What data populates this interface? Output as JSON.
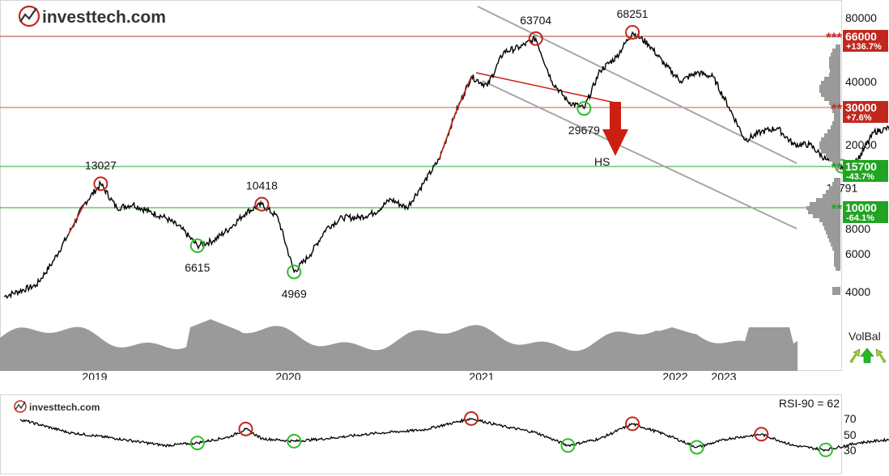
{
  "brand": {
    "name": "investtech.com",
    "small_name": "investtech.com"
  },
  "colors": {
    "price_line": "#000000",
    "resistance_line": "#b03a2e",
    "support_line": "#22aa22",
    "trend_channel": "#a6a6a6",
    "volume_fill": "#9a9a9a",
    "resistance_label_bg": "#c0281e",
    "support_label_bg": "#22a322",
    "circle_high": "#c0281e",
    "circle_low": "#2fbf2f",
    "hs_arrow": "#cc1f10"
  },
  "chart_data": [
    {
      "type": "line",
      "title": "",
      "ylim": [
        3500,
        95000
      ],
      "scale": "log",
      "x_ticks": [
        "2019",
        "2020",
        "2021",
        "2022",
        "2023"
      ],
      "y_ticks": [
        "80000",
        "40000",
        "20000",
        "8000",
        "6000",
        "4000"
      ],
      "series": [
        {
          "values": [
            [
              "2018-08",
              3800
            ],
            [
              "2018-10",
              4300
            ],
            [
              "2018-11",
              5500
            ],
            [
              "2018-12",
              7500
            ],
            [
              "2019-01",
              10500
            ],
            [
              "2019-02",
              13027
            ],
            [
              "2019-03",
              10000
            ],
            [
              "2019-04",
              10400
            ],
            [
              "2019-05",
              9600
            ],
            [
              "2019-06",
              9000
            ],
            [
              "2019-07",
              8000
            ],
            [
              "2019-08",
              6615
            ],
            [
              "2019-09",
              7000
            ],
            [
              "2019-10",
              8000
            ],
            [
              "2019-11",
              9500
            ],
            [
              "2019-12",
              10418
            ],
            [
              "2020-01",
              9000
            ],
            [
              "2020-02",
              4969
            ],
            [
              "2020-03",
              6000
            ],
            [
              "2020-04",
              8000
            ],
            [
              "2020-05",
              9000
            ],
            [
              "2020-06",
              9000
            ],
            [
              "2020-07",
              9500
            ],
            [
              "2020-08",
              11000
            ],
            [
              "2020-09",
              10000
            ],
            [
              "2020-10",
              13000
            ],
            [
              "2020-11",
              17000
            ],
            [
              "2020-12",
              28000
            ],
            [
              "2021-01",
              42000
            ],
            [
              "2021-02",
              38000
            ],
            [
              "2021-03",
              55000
            ],
            [
              "2021-04",
              58000
            ],
            [
              "2021-05",
              63704
            ],
            [
              "2021-06",
              40000
            ],
            [
              "2021-07",
              32000
            ],
            [
              "2021-08",
              29679
            ],
            [
              "2021-09",
              45000
            ],
            [
              "2021-10",
              52000
            ],
            [
              "2021-11",
              68251
            ],
            [
              "2021-12",
              60000
            ],
            [
              "2022-01",
              48000
            ],
            [
              "2022-02",
              40000
            ],
            [
              "2022-03",
              44000
            ],
            [
              "2022-04",
              42000
            ],
            [
              "2022-05",
              30000
            ],
            [
              "2022-06",
              21000
            ],
            [
              "2022-07",
              23000
            ],
            [
              "2022-08",
              24000
            ],
            [
              "2022-09",
              20000
            ],
            [
              "2022-10",
              20000
            ],
            [
              "2022-11",
              17000
            ],
            [
              "2022-12",
              15791
            ],
            [
              "2023-01",
              17000
            ],
            [
              "2023-02",
              23000
            ],
            [
              "2023-03",
              24000
            ],
            [
              "2023-04",
              27000
            ],
            [
              "2023-05",
              29000
            ]
          ]
        }
      ],
      "levels": [
        {
          "value": 66000,
          "label": "66000",
          "change": "+136.7%",
          "stars": "***",
          "kind": "resistance"
        },
        {
          "value": 30000,
          "label": "30000",
          "change": "+7.6%",
          "stars": "**",
          "kind": "resistance"
        },
        {
          "value": 15700,
          "label": "15700",
          "change": "-43.7%",
          "stars": "**",
          "kind": "support"
        },
        {
          "value": 10000,
          "label": "10000",
          "change": "-64.1%",
          "stars": "**",
          "kind": "support"
        }
      ],
      "annotations": [
        {
          "date": "2019-02",
          "value": 13027,
          "label": "13027",
          "kind": "high"
        },
        {
          "date": "2019-08",
          "value": 6615,
          "label": "6615",
          "kind": "low"
        },
        {
          "date": "2019-12",
          "value": 10418,
          "label": "10418",
          "kind": "high"
        },
        {
          "date": "2020-02",
          "value": 4969,
          "label": "4969",
          "kind": "low"
        },
        {
          "date": "2021-05",
          "value": 63704,
          "label": "63704",
          "kind": "high"
        },
        {
          "date": "2021-08",
          "value": 29679,
          "label": "29679",
          "kind": "low"
        },
        {
          "date": "2021-11",
          "value": 68251,
          "label": "68251",
          "kind": "high"
        },
        {
          "date": "2022-12",
          "value": 15791,
          "label": "15791",
          "kind": "low"
        }
      ],
      "pattern": {
        "label": "HS",
        "direction": "down"
      },
      "indicator_label": "VolBal"
    },
    {
      "type": "line",
      "title": "RSI-90 = 62",
      "ylim": [
        20,
        85
      ],
      "y_ticks": [
        "70",
        "50",
        "30"
      ],
      "series": [
        {
          "name": "RSI-90",
          "values": [
            [
              "2018-09",
              72
            ],
            [
              "2018-12",
              57
            ],
            [
              "2019-03",
              50
            ],
            [
              "2019-06",
              42
            ],
            [
              "2019-08",
              45
            ],
            [
              "2019-10",
              52
            ],
            [
              "2019-11",
              61
            ],
            [
              "2019-12",
              50
            ],
            [
              "2020-02",
              47
            ],
            [
              "2020-04",
              50
            ],
            [
              "2020-07",
              56
            ],
            [
              "2020-10",
              60
            ],
            [
              "2021-01",
              73
            ],
            [
              "2021-03",
              64
            ],
            [
              "2021-05",
              57
            ],
            [
              "2021-07",
              42
            ],
            [
              "2021-09",
              50
            ],
            [
              "2021-11",
              67
            ],
            [
              "2022-01",
              55
            ],
            [
              "2022-03",
              40
            ],
            [
              "2022-05",
              50
            ],
            [
              "2022-07",
              55
            ],
            [
              "2022-09",
              42
            ],
            [
              "2022-11",
              37
            ],
            [
              "2023-01",
              45
            ],
            [
              "2023-03",
              49
            ],
            [
              "2023-05",
              66
            ],
            [
              "2023-06",
              62
            ]
          ]
        }
      ],
      "highs": [
        "2019-11",
        "2021-01",
        "2021-11",
        "2022-07"
      ],
      "lows": [
        "2019-08",
        "2020-02",
        "2021-07",
        "2022-03",
        "2022-11"
      ]
    }
  ]
}
